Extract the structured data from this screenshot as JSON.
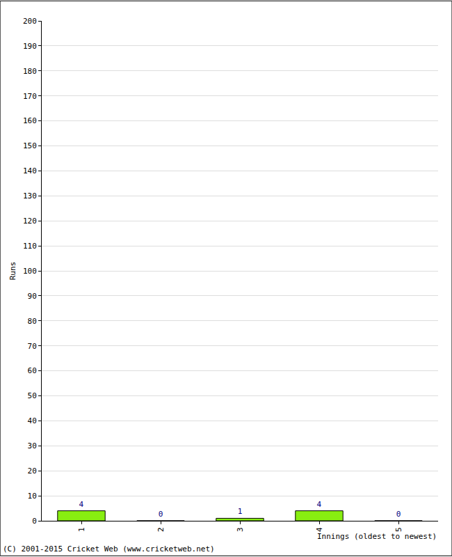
{
  "chart_data": {
    "type": "bar",
    "x_label": "Innings (oldest to newest)",
    "y_label": "Runs",
    "categories": [
      "1",
      "2",
      "3",
      "4",
      "5"
    ],
    "values": [
      4,
      0,
      1,
      4,
      0
    ],
    "color": "#88ee11",
    "ylim": [
      0,
      200
    ],
    "yticks": [
      0,
      10,
      20,
      30,
      40,
      50,
      60,
      70,
      80,
      90,
      100,
      110,
      120,
      130,
      140,
      150,
      160,
      170,
      180,
      190,
      200
    ],
    "grid": true,
    "data_labels": true,
    "annotations": [
      "(C) 2001-2015 Cricket Web (www.cricketweb.net)"
    ]
  }
}
